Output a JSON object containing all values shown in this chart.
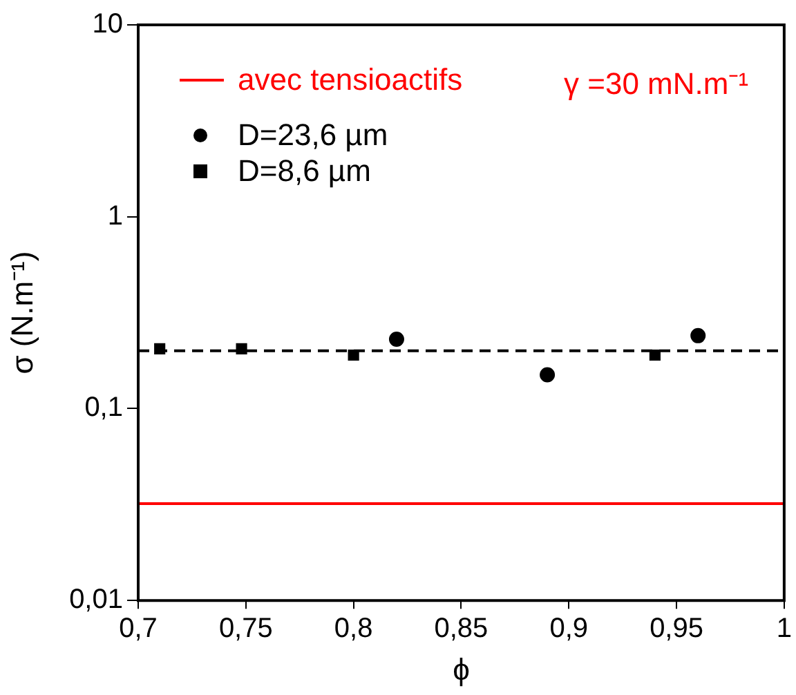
{
  "chart_data": {
    "type": "scatter",
    "xlabel": "ϕ",
    "ylabel": "σ (N.m⁻¹)",
    "annotations": [
      "γ =30 mN.m⁻¹"
    ],
    "series": [
      {
        "name": "avec tensioactifs",
        "type": "line",
        "color": "#ff0000",
        "marker": "none",
        "x": [
          0.7,
          1.0
        ],
        "values": [
          0.032,
          0.032
        ]
      },
      {
        "name": "D=23,6 µm",
        "type": "scatter",
        "color": "#000000",
        "marker": "circle",
        "x": [
          0.82,
          0.89,
          0.96
        ],
        "values": [
          0.23,
          0.15,
          0.24
        ]
      },
      {
        "name": "D=8,6 µm",
        "type": "scatter",
        "color": "#000000",
        "marker": "square",
        "x": [
          0.71,
          0.748,
          0.8,
          0.94
        ],
        "values": [
          0.205,
          0.205,
          0.19,
          0.19
        ]
      }
    ],
    "ref_lines": [
      {
        "axis": "y",
        "value": 0.2,
        "color": "#000000",
        "line_style": "dashed"
      }
    ],
    "log": "y",
    "grid": false,
    "legend": "top left",
    "xlim": [
      0.7,
      1
    ],
    "ylim": [
      0.01,
      10
    ],
    "xticks": [
      {
        "value": 0.7,
        "label": "0,7"
      },
      {
        "value": 0.75,
        "label": "0,75"
      },
      {
        "value": 0.8,
        "label": "0,8"
      },
      {
        "value": 0.85,
        "label": "0,85"
      },
      {
        "value": 0.9,
        "label": "0,9"
      },
      {
        "value": 0.95,
        "label": "0,95"
      },
      1
    ],
    "yticks": [
      {
        "value": 0.01,
        "label": "0,01"
      },
      {
        "value": 0.1,
        "label": "0,1"
      },
      1,
      10
    ]
  }
}
